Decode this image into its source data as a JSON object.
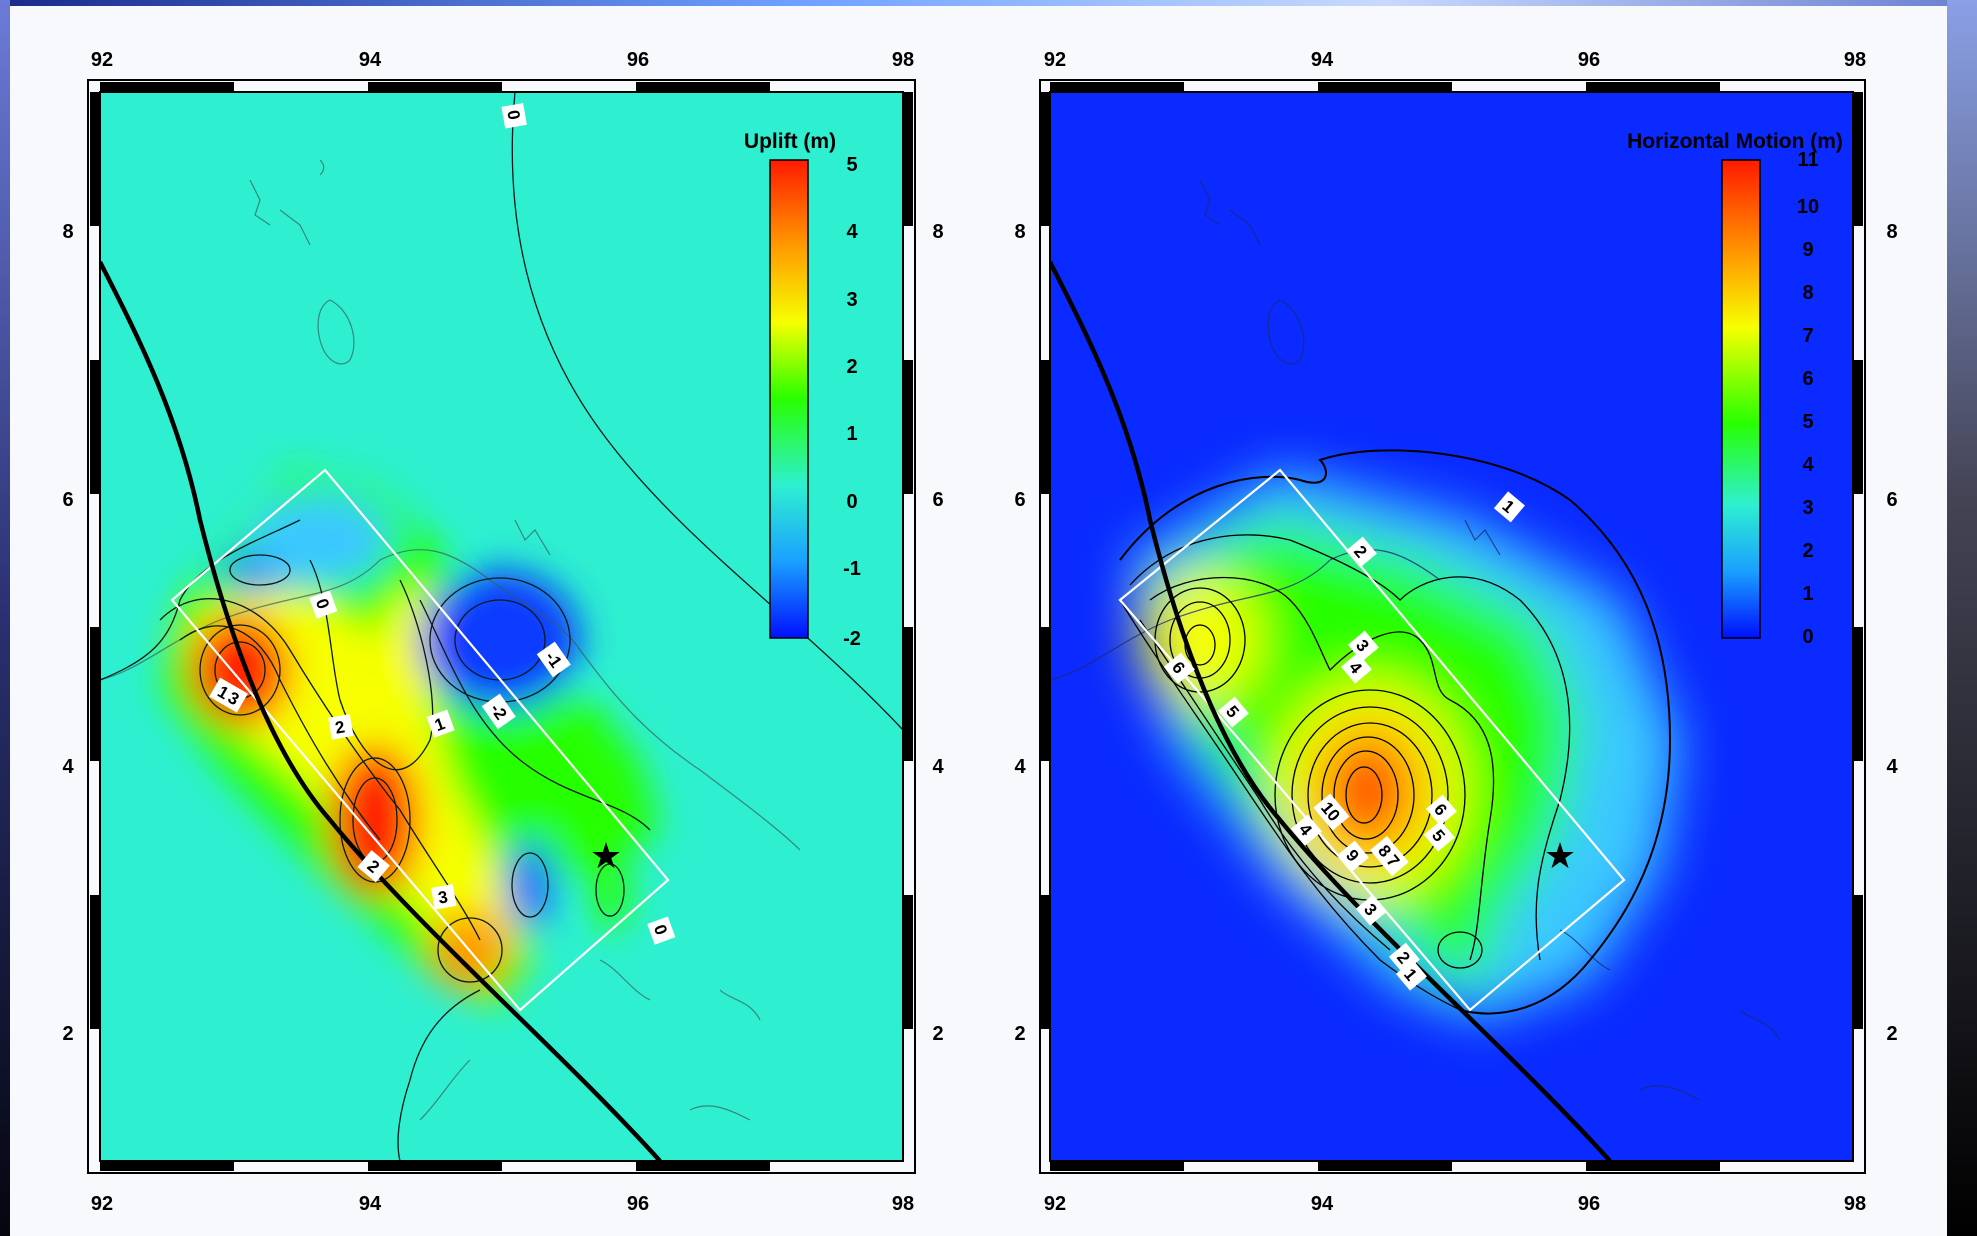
{
  "panels": [
    {
      "id": "uplift",
      "colorbar_title": "Uplift (m)",
      "colorbar_ticks": [
        "5",
        "4",
        "3",
        "2",
        "1",
        "0",
        "-1",
        "-2"
      ],
      "background": "#2ef0d0",
      "lon_labels": [
        "92",
        "94",
        "96",
        "98"
      ],
      "lat_labels": [
        "8",
        "6",
        "4",
        "2"
      ],
      "contour_labels": [
        "0",
        "0",
        "-1",
        "-2",
        "1",
        "2",
        "1",
        "3",
        "2",
        "3",
        "0"
      ]
    },
    {
      "id": "horizontal",
      "colorbar_title": "Horizontal Motion (m)",
      "colorbar_ticks": [
        "11",
        "10",
        "9",
        "8",
        "7",
        "6",
        "5",
        "4",
        "3",
        "2",
        "1",
        "0"
      ],
      "background": "#0a2aff",
      "lon_labels": [
        "92",
        "94",
        "96",
        "98"
      ],
      "lat_labels": [
        "8",
        "6",
        "4",
        "2"
      ],
      "contour_labels": [
        "1",
        "2",
        "3",
        "4",
        "6",
        "5",
        "10",
        "9",
        "8",
        "7",
        "6",
        "5",
        "4",
        "3",
        "2",
        "1"
      ]
    }
  ],
  "colors": {
    "star": "#000000",
    "fault_line": "#000000",
    "rupture_box": "#ffffff"
  }
}
